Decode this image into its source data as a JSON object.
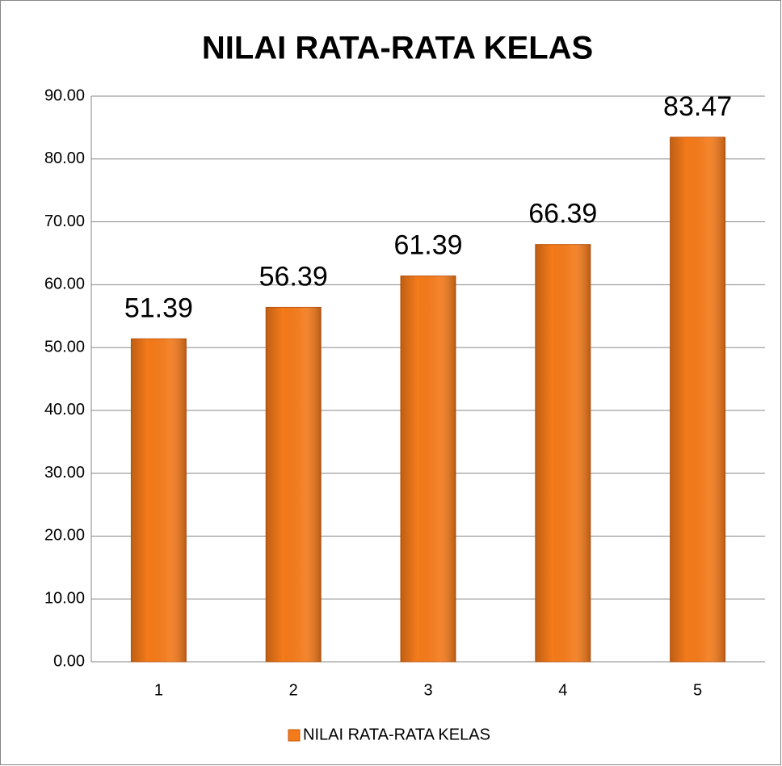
{
  "chart_data": {
    "type": "bar",
    "title": "NILAI RATA-RATA KELAS",
    "categories": [
      "1",
      "2",
      "3",
      "4",
      "5"
    ],
    "series": [
      {
        "name": "NILAI RATA-RATA KELAS",
        "color": "#f47a1a",
        "values": [
          51.39,
          56.39,
          61.39,
          66.39,
          83.47
        ]
      }
    ],
    "ylim": [
      0,
      90
    ],
    "yticks": [
      {
        "value": 0,
        "label": "0.00"
      },
      {
        "value": 10,
        "label": "10.00"
      },
      {
        "value": 20,
        "label": "20.00"
      },
      {
        "value": 30,
        "label": "30.00"
      },
      {
        "value": 40,
        "label": "40.00"
      },
      {
        "value": 50,
        "label": "50.00"
      },
      {
        "value": 60,
        "label": "60.00"
      },
      {
        "value": 70,
        "label": "70.00"
      },
      {
        "value": 80,
        "label": "80.00"
      },
      {
        "value": 90,
        "label": "90.00"
      }
    ],
    "grid": true,
    "legend": "bottom"
  }
}
